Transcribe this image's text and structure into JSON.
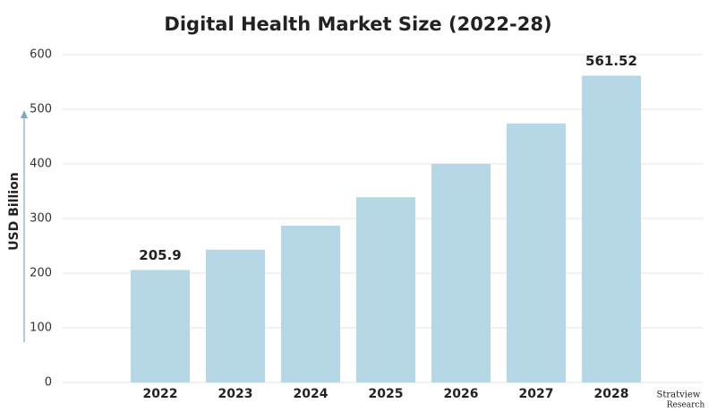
{
  "chart_data": {
    "type": "bar",
    "title": "Digital Health Market Size (2022-28)",
    "y_label": "USD Billion",
    "categories": [
      "2022",
      "2023",
      "2024",
      "2025",
      "2026",
      "2027",
      "2028"
    ],
    "values": [
      205.9,
      243,
      287,
      339,
      400,
      474,
      561.52
    ],
    "labeled_indices": [
      0,
      6
    ],
    "color": "#b5d7e6",
    "ylim": [
      0,
      600
    ],
    "yticks": [
      0,
      100,
      200,
      300,
      400,
      500,
      600
    ],
    "grid": true,
    "watermark": [
      "Stratview",
      "Research"
    ]
  }
}
